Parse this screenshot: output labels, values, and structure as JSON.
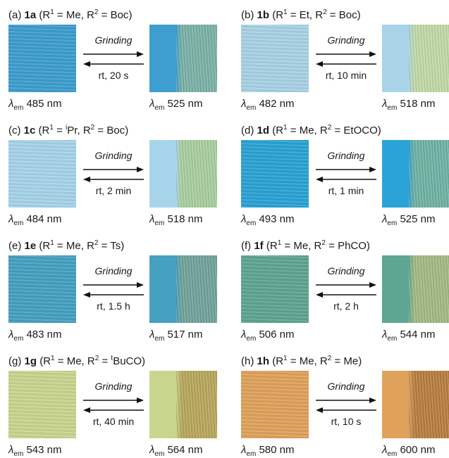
{
  "panels": [
    {
      "tag": "(a) ",
      "compound": "1a",
      "r1_pre": "",
      "r1": "Me",
      "r2_pre": "",
      "r2": "Boc",
      "forward": "Grinding",
      "reverse": "rt, 20 s",
      "left_em": "485 nm",
      "right_em": "525 nm",
      "left_color": "#3d9ecf",
      "right_color": "#7bb3a6"
    },
    {
      "tag": "(b) ",
      "compound": "1b",
      "r1_pre": "",
      "r1": "Et",
      "r2_pre": "",
      "r2": "Boc",
      "forward": "Grinding",
      "reverse": "rt, 10 min",
      "left_em": "482 nm",
      "right_em": "518 nm",
      "left_color": "#a9d3e6",
      "right_color": "#c2dba8"
    },
    {
      "tag": "(c) ",
      "compound": "1c",
      "r1_pre": "i",
      "r1": "Pr",
      "r2_pre": "",
      "r2": "Boc",
      "forward": "Grinding",
      "reverse": "rt, 2 min",
      "left_em": "484 nm",
      "right_em": "518 nm",
      "left_color": "#a7d4ea",
      "right_color": "#a9cf9e"
    },
    {
      "tag": "(d) ",
      "compound": "1d",
      "r1_pre": "",
      "r1": "Me",
      "r2_pre": "",
      "r2": "EtOCO",
      "forward": "Grinding",
      "reverse": "rt, 1 min",
      "left_em": "493 nm",
      "right_em": "525 nm",
      "left_color": "#2aa3d6",
      "right_color": "#6fb3a4"
    },
    {
      "tag": "(e) ",
      "compound": "1e",
      "r1_pre": "",
      "r1": "Me",
      "r2_pre": "",
      "r2": "Ts",
      "forward": "Grinding",
      "reverse": "rt, 1.5 h",
      "left_em": "483 nm",
      "right_em": "517 nm",
      "left_color": "#46a1c1",
      "right_color": "#70a49c"
    },
    {
      "tag": "(f) ",
      "compound": "1f",
      "r1_pre": "",
      "r1": "Me",
      "r2_pre": "",
      "r2": "PhCO",
      "forward": "Grinding",
      "reverse": "rt, 2 h",
      "left_em": "506 nm",
      "right_em": "544 nm",
      "left_color": "#5ea592",
      "right_color": "#a4ba84"
    },
    {
      "tag": "(g) ",
      "compound": "1g",
      "r1_pre": "",
      "r1": "Me",
      "r2_pre": "t",
      "r2": "BuCO",
      "forward": "Grinding",
      "reverse": "rt, 40 min",
      "left_em": "543 nm",
      "right_em": "564 nm",
      "left_color": "#c9d68e",
      "right_color": "#b8a75a"
    },
    {
      "tag": "(h) ",
      "compound": "1h",
      "r1_pre": "",
      "r1": "Me",
      "r2_pre": "",
      "r2": "Me",
      "forward": "Grinding",
      "reverse": "rt, 10 s",
      "left_em": "580 nm",
      "right_em": "600 nm",
      "left_color": "#e0a25b",
      "right_color": "#b97d3f"
    }
  ],
  "common": {
    "lambda": "λ",
    "em_sub": "em",
    "r": "R",
    "sup1": "1",
    "sup2": "2",
    "eq": " = ",
    "open": "(",
    "sep": ", ",
    "close": ")"
  }
}
